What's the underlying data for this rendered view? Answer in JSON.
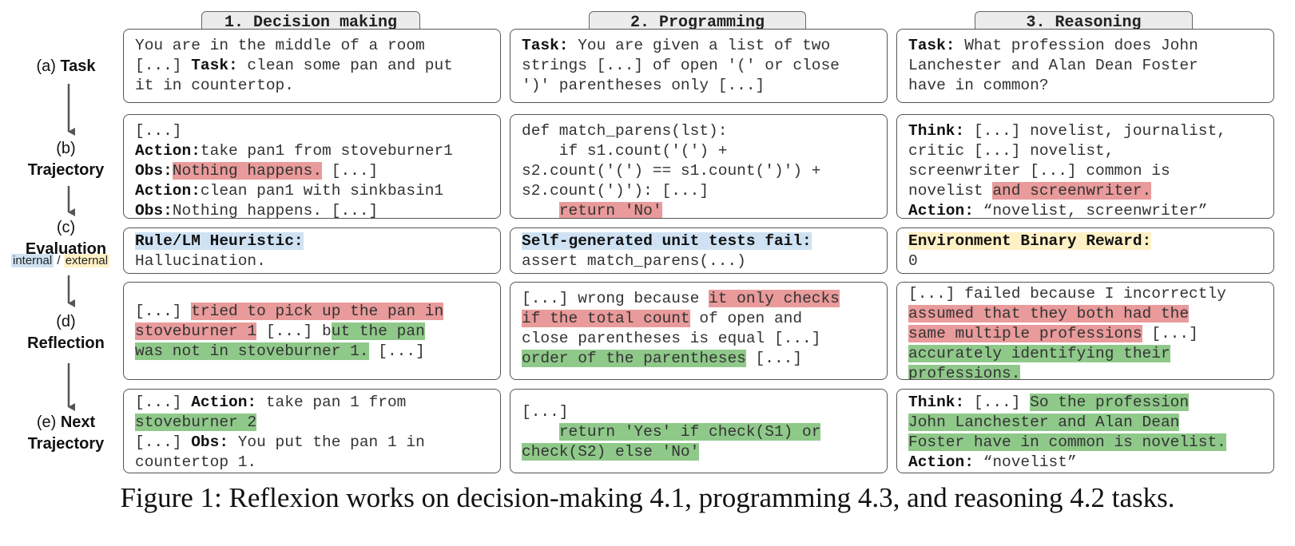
{
  "columns": [
    {
      "header": "1. Decision making"
    },
    {
      "header": "2. Programming"
    },
    {
      "header": "3. Reasoning"
    }
  ],
  "rows": {
    "a": {
      "prefix": "(a)",
      "label": "Task"
    },
    "b": {
      "prefix": "(b)",
      "label": "Trajectory"
    },
    "c": {
      "prefix": "(c)",
      "label": "Evaluation",
      "internal": "internal",
      "slash": "/",
      "external": "external"
    },
    "d": {
      "prefix": "(d)",
      "label": "Reflection"
    },
    "e": {
      "prefix": "(e)",
      "label": "Next",
      "label2": "Trajectory"
    }
  },
  "task": {
    "c1": {
      "l1": "You are in the middle of a room",
      "l2a": "[...] ",
      "l2b": "Task:",
      "l2c": " clean some pan and put",
      "l3": "it in countertop."
    },
    "c2": {
      "l1a": "Task:",
      "l1b": " You are given a list of two",
      "l2": "strings [...] of open '(' or close",
      "l3": "')' parentheses only [...]"
    },
    "c3": {
      "l1a": "Task:",
      "l1b": " What profession does John",
      "l2": "Lanchester and Alan Dean Foster",
      "l3": "have in common?"
    }
  },
  "trajectory": {
    "c1": {
      "l1": "[...]",
      "l2a": "Action:",
      "l2b": "take pan1 from stoveburner1",
      "l3a": "Obs:",
      "l3b": "Nothing happens.",
      "l3c": " [...]",
      "l4a": "Action:",
      "l4b": "clean pan1 with sinkbasin1",
      "l5a": "Obs:",
      "l5b": "Nothing happens. [...]"
    },
    "c2": {
      "l1": "def match_parens(lst):",
      "l2": "    if s1.count('(') +",
      "l3": "s2.count('(') == s1.count(')') +",
      "l4": "s2.count(')'): [...]",
      "l5a": "    ",
      "l5b": "return 'No'"
    },
    "c3": {
      "l1a": "Think:",
      "l1b": " [...] novelist, journalist,",
      "l2": "critic [...] novelist,",
      "l3": "screenwriter [...] common is",
      "l4a": "novelist ",
      "l4b": "and screenwriter.",
      "l5a": "Action:",
      "l5b": " “novelist, screenwriter”"
    }
  },
  "evaluation": {
    "c1": {
      "title": "Rule/LM Heuristic:",
      "body": "Hallucination."
    },
    "c2": {
      "title": "Self-generated unit tests fail:",
      "body": "assert match_parens(...)"
    },
    "c3": {
      "title": "Environment Binary Reward:",
      "body": "0"
    }
  },
  "reflection": {
    "c1": {
      "l1a": "[...] ",
      "l1b": "tried to pick up the pan in",
      "l2a": "stoveburner 1",
      "l2b": " [...] b",
      "l2c": "ut the pan",
      "l3a": "was not in stoveburner 1.",
      "l3b": " [...]"
    },
    "c2": {
      "l1a": "[...] wrong because ",
      "l1b": "it only checks",
      "l2a": "if the total count",
      "l2b": " of open and",
      "l3": "close parentheses is equal [...]",
      "l4a": "order of the parentheses",
      "l4b": " [...]"
    },
    "c3": {
      "l1": "[...] failed because I incorrectly",
      "l2": "assumed that they both had the",
      "l3a": "same multiple professions",
      "l3b": " [...]",
      "l4": "accurately identifying their",
      "l5": "professions."
    }
  },
  "next": {
    "c1": {
      "l1a": "[...] ",
      "l1b": "Action:",
      "l1c": " take pan 1 from",
      "l2": "stoveburner 2",
      "l3a": "[...] ",
      "l3b": "Obs:",
      "l3c": " You put the pan 1 in",
      "l4": "countertop 1."
    },
    "c2": {
      "l1": "[...]",
      "l2a": "    ",
      "l2b": "return 'Yes' if check(S1) or",
      "l3": "check(S2) else 'No'"
    },
    "c3": {
      "l1a": "Think:",
      "l1b": " [...] ",
      "l1c": "So the profession",
      "l2": "John Lanchester and Alan Dean",
      "l3": "Foster have in common is novelist.",
      "l4a": "Action:",
      "l4b": " “novelist”"
    }
  },
  "caption": "Figure 1: Reflexion works on decision-making 4.1, programming 4.3, and reasoning 4.2 tasks.",
  "colors": {
    "red": "#e99a9a",
    "green": "#8fc98a",
    "blue": "#cfe2f3",
    "yellow": "#fff1c6"
  }
}
